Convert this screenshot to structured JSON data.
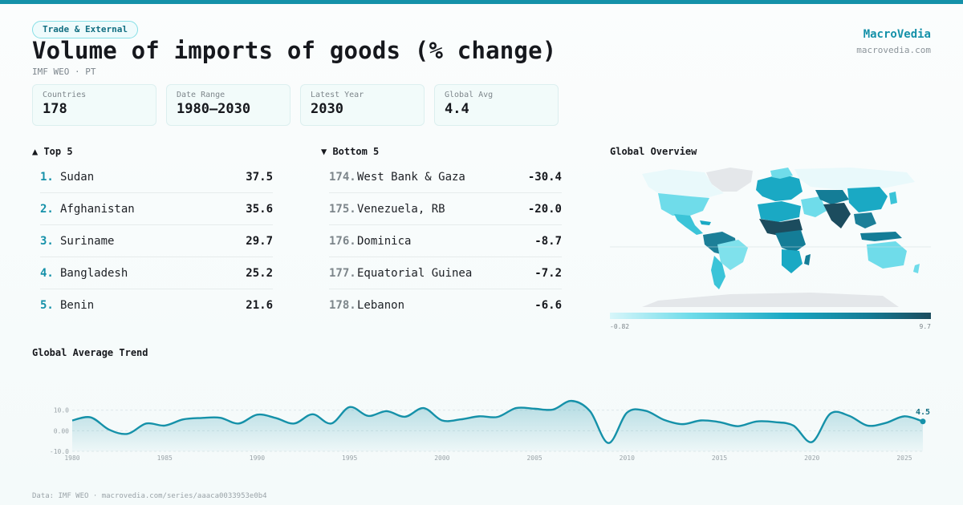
{
  "header": {
    "badge": "Trade & External",
    "title": "Volume of imports of goods (% change)",
    "subtitle": "IMF WEO · PT",
    "brand": "MacroVedia",
    "brand_url": "macrovedia.com"
  },
  "stats": [
    {
      "label": "Countries",
      "value": "178"
    },
    {
      "label": "Date Range",
      "value": "1980–2030"
    },
    {
      "label": "Latest Year",
      "value": "2030"
    },
    {
      "label": "Global Avg",
      "value": "4.4"
    }
  ],
  "top": {
    "heading": "▲ Top 5",
    "items": [
      {
        "rank": "1.",
        "name": "Sudan",
        "value": "37.5"
      },
      {
        "rank": "2.",
        "name": "Afghanistan",
        "value": "35.6"
      },
      {
        "rank": "3.",
        "name": "Suriname",
        "value": "29.7"
      },
      {
        "rank": "4.",
        "name": "Bangladesh",
        "value": "25.2"
      },
      {
        "rank": "5.",
        "name": "Benin",
        "value": "21.6"
      }
    ]
  },
  "bottom": {
    "heading": "▼ Bottom 5",
    "items": [
      {
        "rank": "174.",
        "name": "West Bank & Gaza",
        "value": "-30.4"
      },
      {
        "rank": "175.",
        "name": "Venezuela, RB",
        "value": "-20.0"
      },
      {
        "rank": "176.",
        "name": "Dominica",
        "value": "-8.7"
      },
      {
        "rank": "177.",
        "name": "Equatorial Guinea",
        "value": "-7.2"
      },
      {
        "rank": "178.",
        "name": "Lebanon",
        "value": "-6.6"
      }
    ]
  },
  "map": {
    "heading": "Global Overview",
    "legend_min": "-0.82",
    "legend_max": "9.7",
    "colors": {
      "low": "#d8f6fa",
      "mid": "#1aa9c4",
      "high": "#1c4c5e",
      "nodata": "#e4e7ea"
    }
  },
  "trend_heading": "Global Average Trend",
  "chart_data": {
    "type": "area",
    "title": "Global Average Trend",
    "x": [
      1980,
      1981,
      1982,
      1983,
      1984,
      1985,
      1986,
      1987,
      1988,
      1989,
      1990,
      1991,
      1992,
      1993,
      1994,
      1995,
      1996,
      1997,
      1998,
      1999,
      2000,
      2001,
      2002,
      2003,
      2004,
      2005,
      2006,
      2007,
      2008,
      2009,
      2010,
      2011,
      2012,
      2013,
      2014,
      2015,
      2016,
      2017,
      2018,
      2019,
      2020,
      2021,
      2022,
      2023,
      2024,
      2025,
      2026
    ],
    "series": [
      {
        "values": [
          5.0,
          6.5,
          0.5,
          -1.5,
          3.5,
          2.5,
          5.5,
          6.2,
          6.3,
          3.5,
          7.8,
          6.2,
          3.5,
          8.0,
          3.5,
          11.5,
          7.2,
          9.5,
          6.8,
          11.0,
          5.0,
          5.5,
          7.0,
          6.7,
          11.0,
          10.7,
          10.3,
          14.5,
          9.5,
          -6.0,
          8.8,
          9.7,
          5.3,
          3.2,
          5.0,
          4.2,
          2.2,
          4.5,
          4.2,
          2.5,
          -5.5,
          8.3,
          7.3,
          2.5,
          3.8,
          7.0,
          4.5
        ]
      }
    ],
    "yticks": [
      "10.0",
      "0.00",
      "-10.0"
    ],
    "ylim": [
      -10,
      20
    ],
    "xticks": [
      "1980",
      "1985",
      "1990",
      "1995",
      "2000",
      "2005",
      "2010",
      "2015",
      "2020",
      "2025"
    ],
    "end_label": "4.5",
    "color": "#1591a9",
    "grid": true
  },
  "footer": "Data: IMF WEO · macrovedia.com/series/aaaca0033953e0b4"
}
